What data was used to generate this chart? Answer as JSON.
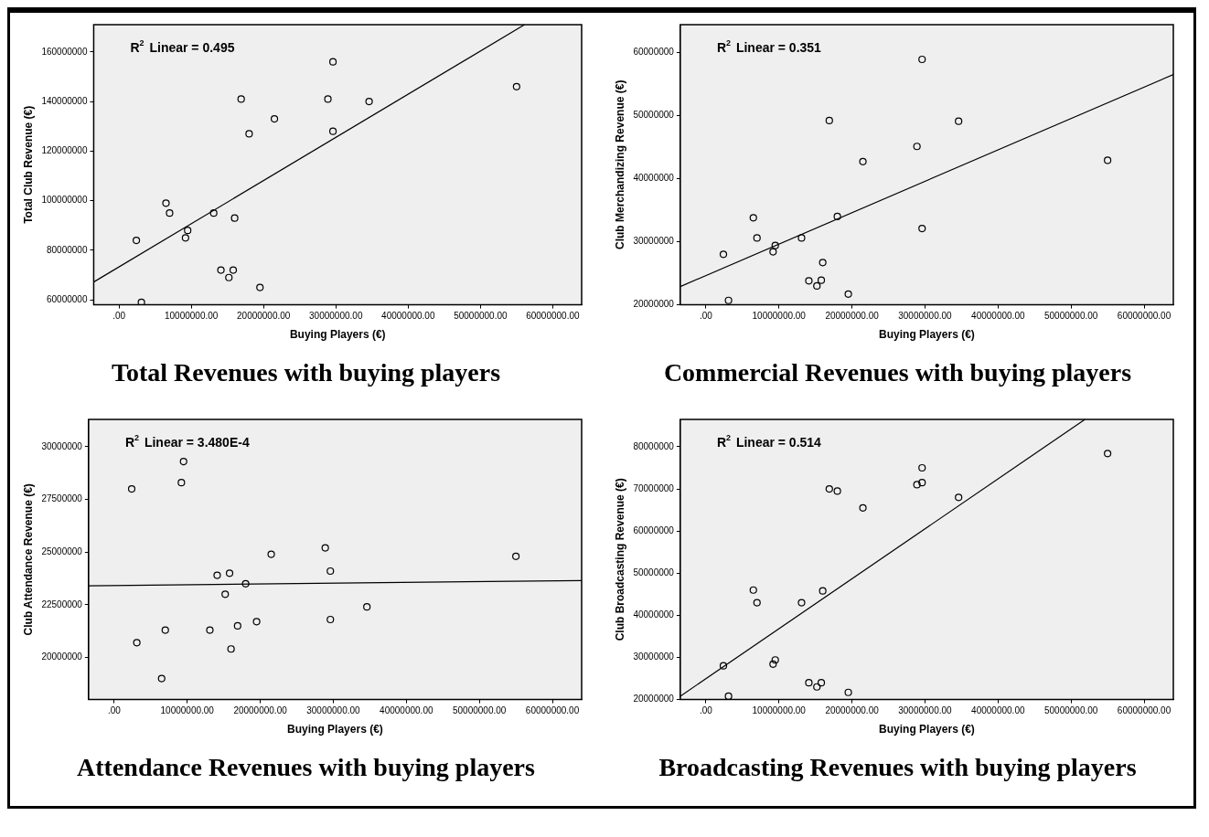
{
  "chart_data": [
    {
      "type": "scatter",
      "title": "Total Revenues with buying players",
      "xlabel": "Buying Players (€)",
      "ylabel": "Total Club Revenue (€)",
      "annotations": [
        "R$^{2}$ Linear = 0.495"
      ],
      "marker": "circle",
      "xlim": [
        -3500000,
        64000000
      ],
      "xticks": [
        {
          "value": 0,
          "label": ".00"
        },
        {
          "value": 10000000,
          "label": "10000000.00"
        },
        {
          "value": 20000000,
          "label": "20000000.00"
        },
        {
          "value": 30000000,
          "label": "30000000.00"
        },
        {
          "value": 40000000,
          "label": "40000000.00"
        },
        {
          "value": 50000000,
          "label": "50000000.00"
        },
        {
          "value": 60000000,
          "label": "60000000.00"
        }
      ],
      "ylim": [
        58000000,
        171000000
      ],
      "yticks": [
        60000000,
        80000000,
        100000000,
        120000000,
        140000000,
        160000000
      ],
      "series": [
        {
          "color": "#000000",
          "x": [
            2400000,
            3100000,
            6500000,
            7000000,
            9200000,
            9500000,
            13100000,
            14100000,
            15200000,
            15800000,
            16000000,
            16900000,
            18000000,
            19500000,
            21500000,
            28900000,
            29600000,
            29600000,
            34600000,
            55000000
          ],
          "values": [
            84000000,
            59000000,
            99000000,
            95000000,
            85000000,
            88000000,
            95000000,
            72000000,
            69000000,
            72000000,
            93000000,
            141000000,
            127000000,
            65000000,
            133000000,
            141000000,
            156000000,
            128000000,
            140000000,
            146000000
          ]
        },
        {
          "type": "line",
          "marker": "none",
          "color": "#000000",
          "x": [
            -3500000,
            56100000
          ],
          "values": [
            67200000,
            171000000
          ]
        }
      ]
    },
    {
      "type": "scatter",
      "title": "Commercial Revenues with buying players",
      "xlabel": "Buying Players (€)",
      "ylabel": "Club Merchandizing Revenue (€)",
      "annotations": [
        "R$^{2}$ Linear = 0.351"
      ],
      "marker": "circle",
      "xlim": [
        -3500000,
        64000000
      ],
      "xticks": [
        {
          "value": 0,
          "label": ".00"
        },
        {
          "value": 10000000,
          "label": "10000000.00"
        },
        {
          "value": 20000000,
          "label": "20000000.00"
        },
        {
          "value": 30000000,
          "label": "30000000.00"
        },
        {
          "value": 40000000,
          "label": "40000000.00"
        },
        {
          "value": 50000000,
          "label": "50000000.00"
        },
        {
          "value": 60000000,
          "label": "60000000.00"
        }
      ],
      "ylim": [
        20000000,
        64400000
      ],
      "yticks": [
        20000000,
        30000000,
        40000000,
        50000000,
        60000000
      ],
      "series": [
        {
          "color": "#000000",
          "x": [
            2400000,
            3100000,
            6500000,
            7000000,
            9200000,
            9500000,
            13100000,
            14100000,
            15200000,
            15800000,
            16000000,
            16900000,
            18000000,
            19500000,
            21500000,
            28900000,
            29600000,
            29600000,
            34600000,
            55000000
          ],
          "values": [
            28000000,
            20700000,
            33800000,
            30600000,
            28400000,
            29400000,
            30600000,
            23800000,
            23000000,
            23900000,
            26700000,
            49200000,
            34000000,
            21700000,
            42700000,
            45100000,
            58900000,
            32100000,
            49100000,
            42900000
          ]
        },
        {
          "type": "line",
          "marker": "none",
          "color": "#000000",
          "x": [
            -3500000,
            64000000
          ],
          "values": [
            22900000,
            56500000
          ]
        }
      ]
    },
    {
      "type": "scatter",
      "title": "Attendance Revenues with buying players",
      "xlabel": "Buying Players (€)",
      "ylabel": "Club Attendance Revenue (€)",
      "annotations": [
        "R$^{2}$ Linear = 3.480E-4"
      ],
      "marker": "circle",
      "xlim": [
        -3500000,
        64000000
      ],
      "xticks": [
        {
          "value": 0,
          "label": ".00"
        },
        {
          "value": 10000000,
          "label": "10000000.00"
        },
        {
          "value": 20000000,
          "label": "20000000.00"
        },
        {
          "value": 30000000,
          "label": "30000000.00"
        },
        {
          "value": 40000000,
          "label": "40000000.00"
        },
        {
          "value": 50000000,
          "label": "50000000.00"
        },
        {
          "value": 60000000,
          "label": "60000000.00"
        }
      ],
      "ylim": [
        18000000,
        31300000
      ],
      "yticks": [
        20000000,
        22500000,
        25000000,
        27500000,
        30000000
      ],
      "series": [
        {
          "color": "#000000",
          "x": [
            2400000,
            3100000,
            6500000,
            7000000,
            9200000,
            9500000,
            13100000,
            14100000,
            15200000,
            15800000,
            16000000,
            16900000,
            18000000,
            19500000,
            21500000,
            28900000,
            29600000,
            29600000,
            34600000,
            55000000
          ],
          "values": [
            28000000,
            20700000,
            19000000,
            21300000,
            28300000,
            29300000,
            21300000,
            23900000,
            23000000,
            24000000,
            20400000,
            21500000,
            23500000,
            21700000,
            24900000,
            25200000,
            24100000,
            21800000,
            22400000,
            24800000
          ]
        },
        {
          "type": "line",
          "marker": "none",
          "color": "#000000",
          "x": [
            -3500000,
            64000000
          ],
          "values": [
            23400000,
            23650000
          ]
        }
      ]
    },
    {
      "type": "scatter",
      "title": "Broadcasting Revenues with buying players",
      "xlabel": "Buying Players (€)",
      "ylabel": "Club Broadcasting Revenue (€)",
      "annotations": [
        "R$^{2}$ Linear = 0.514"
      ],
      "marker": "circle",
      "xlim": [
        -3500000,
        64000000
      ],
      "xticks": [
        {
          "value": 0,
          "label": ".00"
        },
        {
          "value": 10000000,
          "label": "10000000.00"
        },
        {
          "value": 20000000,
          "label": "20000000.00"
        },
        {
          "value": 30000000,
          "label": "30000000.00"
        },
        {
          "value": 40000000,
          "label": "40000000.00"
        },
        {
          "value": 50000000,
          "label": "50000000.00"
        },
        {
          "value": 60000000,
          "label": "60000000.00"
        }
      ],
      "ylim": [
        20000000,
        86500000
      ],
      "yticks": [
        20000000,
        30000000,
        40000000,
        50000000,
        60000000,
        70000000,
        80000000
      ],
      "series": [
        {
          "color": "#000000",
          "x": [
            2400000,
            3100000,
            6500000,
            7000000,
            9200000,
            9500000,
            13100000,
            14100000,
            15200000,
            15800000,
            16000000,
            16900000,
            18000000,
            19500000,
            21500000,
            28900000,
            29600000,
            29600000,
            34600000,
            55000000
          ],
          "values": [
            28000000,
            20800000,
            46000000,
            43000000,
            28400000,
            29400000,
            43000000,
            24000000,
            23000000,
            24000000,
            45800000,
            70000000,
            69500000,
            21700000,
            65500000,
            71000000,
            75000000,
            71500000,
            68000000,
            78400000
          ]
        },
        {
          "type": "line",
          "marker": "none",
          "color": "#000000",
          "x": [
            -3500000,
            51900000
          ],
          "values": [
            20800000,
            86500000
          ]
        }
      ]
    }
  ]
}
